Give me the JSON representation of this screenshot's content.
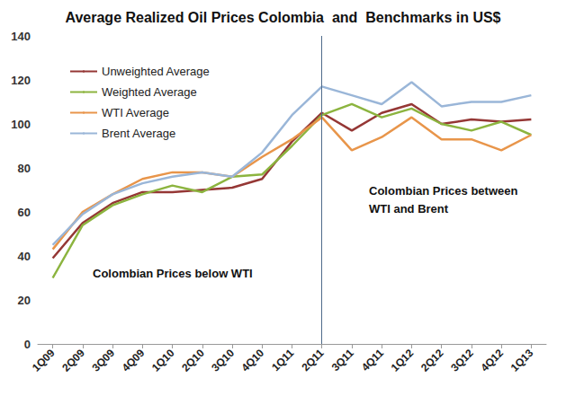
{
  "chart_data": {
    "type": "line",
    "title": "Average Realized Oil Prices Colombia  and  Benchmarks in US$",
    "categories": [
      "1Q09",
      "2Q09",
      "3Q09",
      "4Q09",
      "1Q10",
      "2Q10",
      "3Q10",
      "4Q10",
      "1Q11",
      "2Q11",
      "3Q11",
      "4Q11",
      "1Q12",
      "2Q12",
      "3Q12",
      "4Q12",
      "1Q13"
    ],
    "series": [
      {
        "name": "Unweighted Average",
        "color": "#953735",
        "values": [
          39,
          55,
          64,
          69,
          69,
          70,
          71,
          75,
          92,
          105,
          97,
          105,
          109,
          100,
          102,
          101,
          102
        ]
      },
      {
        "name": "Weighted Average",
        "color": "#8cb43f",
        "values": [
          30,
          54,
          63,
          68,
          72,
          69,
          76,
          77,
          90,
          104,
          109,
          103,
          107,
          100,
          97,
          101,
          95
        ]
      },
      {
        "name": "WTI Average",
        "color": "#e8954a",
        "values": [
          43,
          60,
          68,
          75,
          78,
          78,
          76,
          85,
          93,
          103,
          88,
          94,
          103,
          93,
          93,
          88,
          95
        ]
      },
      {
        "name": "Brent Average",
        "color": "#9ab6d8",
        "values": [
          45,
          59,
          68,
          73,
          76,
          78,
          76,
          87,
          104,
          117,
          113,
          109,
          119,
          108,
          110,
          110,
          113
        ]
      }
    ],
    "ylim": [
      0,
      140
    ],
    "yticks": [
      0,
      20,
      40,
      60,
      80,
      100,
      120,
      140
    ],
    "grid": false,
    "legend": "upper left",
    "vertical_line": "2Q11",
    "annotations": [
      "Colombian Prices between WTI and Brent",
      "Colombian Prices below WTI"
    ]
  }
}
